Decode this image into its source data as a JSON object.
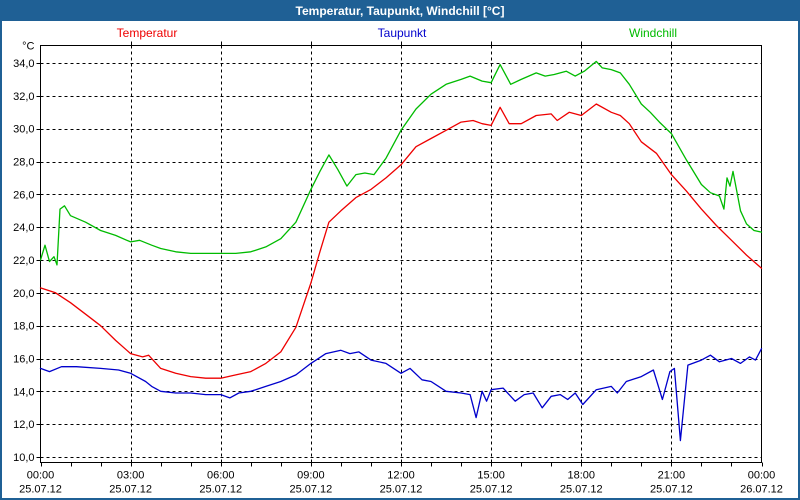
{
  "window": {
    "title": "Temperatur, Taupunkt, Windchill [°C]"
  },
  "colors": {
    "titlebar": "#1f6095",
    "title_text": "#ffffff",
    "axis": "#000000",
    "grid": "#000000",
    "background": "#ffffff"
  },
  "chart_data": {
    "type": "line",
    "title": "Temperatur, Taupunkt, Windchill [°C]",
    "ylabel": "°C",
    "xlabel": "",
    "ylim": [
      9.7,
      35.1
    ],
    "x_unit": "hours",
    "xlim": [
      0,
      24
    ],
    "grid": "dashed",
    "legend_position": "top",
    "y_ticks": [
      {
        "v": 34,
        "label": "34,0"
      },
      {
        "v": 32,
        "label": "32,0"
      },
      {
        "v": 30,
        "label": "30,0"
      },
      {
        "v": 28,
        "label": "28,0"
      },
      {
        "v": 26,
        "label": "26,0"
      },
      {
        "v": 24,
        "label": "24,0"
      },
      {
        "v": 22,
        "label": "22,0"
      },
      {
        "v": 20,
        "label": "20,0"
      },
      {
        "v": 18,
        "label": "18,0"
      },
      {
        "v": 16,
        "label": "16,0"
      },
      {
        "v": 14,
        "label": "14,0"
      },
      {
        "v": 12,
        "label": "12,0"
      },
      {
        "v": 10,
        "label": "10,0"
      }
    ],
    "x_ticks": [
      {
        "h": 0,
        "time": "00:00",
        "date": "25.07.12"
      },
      {
        "h": 3,
        "time": "03:00",
        "date": "25.07.12"
      },
      {
        "h": 6,
        "time": "06:00",
        "date": "25.07.12"
      },
      {
        "h": 9,
        "time": "09:00",
        "date": "25.07.12"
      },
      {
        "h": 12,
        "time": "12:00",
        "date": "25.07.12"
      },
      {
        "h": 15,
        "time": "15:00",
        "date": "25.07.12"
      },
      {
        "h": 18,
        "time": "18:00",
        "date": "25.07.12"
      },
      {
        "h": 21,
        "time": "21:00",
        "date": "25.07.12"
      },
      {
        "h": 24,
        "time": "00:00",
        "date": "26.07.12"
      }
    ],
    "series": [
      {
        "name": "Temperatur",
        "color": "#ee0000",
        "points": [
          [
            0,
            20.3
          ],
          [
            0.5,
            20.0
          ],
          [
            1,
            19.4
          ],
          [
            1.5,
            18.7
          ],
          [
            2,
            18.0
          ],
          [
            2.5,
            17.1
          ],
          [
            3,
            16.3
          ],
          [
            3.4,
            16.1
          ],
          [
            3.6,
            16.2
          ],
          [
            4,
            15.4
          ],
          [
            4.5,
            15.1
          ],
          [
            5,
            14.9
          ],
          [
            5.5,
            14.8
          ],
          [
            6,
            14.8
          ],
          [
            6.5,
            15.0
          ],
          [
            7,
            15.2
          ],
          [
            7.5,
            15.7
          ],
          [
            8,
            16.4
          ],
          [
            8.5,
            17.9
          ],
          [
            9,
            20.6
          ],
          [
            9.3,
            22.5
          ],
          [
            9.6,
            24.3
          ],
          [
            10,
            25.0
          ],
          [
            10.5,
            25.8
          ],
          [
            11,
            26.3
          ],
          [
            11.5,
            27.0
          ],
          [
            12,
            27.8
          ],
          [
            12.5,
            28.9
          ],
          [
            13,
            29.4
          ],
          [
            13.5,
            29.9
          ],
          [
            14,
            30.4
          ],
          [
            14.4,
            30.5
          ],
          [
            14.7,
            30.3
          ],
          [
            15,
            30.2
          ],
          [
            15.3,
            31.3
          ],
          [
            15.6,
            30.3
          ],
          [
            16,
            30.3
          ],
          [
            16.5,
            30.8
          ],
          [
            17,
            30.9
          ],
          [
            17.2,
            30.5
          ],
          [
            17.6,
            31.0
          ],
          [
            18,
            30.8
          ],
          [
            18.5,
            31.5
          ],
          [
            19,
            31.0
          ],
          [
            19.3,
            30.8
          ],
          [
            19.6,
            30.3
          ],
          [
            20,
            29.2
          ],
          [
            20.5,
            28.5
          ],
          [
            21,
            27.2
          ],
          [
            21.5,
            26.2
          ],
          [
            22,
            25.1
          ],
          [
            22.5,
            24.1
          ],
          [
            23,
            23.2
          ],
          [
            23.5,
            22.3
          ],
          [
            24,
            21.5
          ]
        ]
      },
      {
        "name": "Taupunkt",
        "color": "#0000cc",
        "points": [
          [
            0,
            15.4
          ],
          [
            0.3,
            15.2
          ],
          [
            0.7,
            15.5
          ],
          [
            1.2,
            15.5
          ],
          [
            2,
            15.4
          ],
          [
            2.6,
            15.3
          ],
          [
            3,
            15.1
          ],
          [
            3.5,
            14.6
          ],
          [
            3.7,
            14.3
          ],
          [
            4,
            14.0
          ],
          [
            4.5,
            13.9
          ],
          [
            5,
            13.9
          ],
          [
            5.5,
            13.8
          ],
          [
            6,
            13.8
          ],
          [
            6.3,
            13.6
          ],
          [
            6.6,
            13.9
          ],
          [
            7,
            14.0
          ],
          [
            7.5,
            14.3
          ],
          [
            8,
            14.6
          ],
          [
            8.5,
            15.0
          ],
          [
            9,
            15.7
          ],
          [
            9.5,
            16.3
          ],
          [
            10,
            16.5
          ],
          [
            10.3,
            16.3
          ],
          [
            10.6,
            16.4
          ],
          [
            11,
            15.9
          ],
          [
            11.5,
            15.7
          ],
          [
            12,
            15.1
          ],
          [
            12.3,
            15.4
          ],
          [
            12.7,
            14.7
          ],
          [
            13,
            14.6
          ],
          [
            13.5,
            14.0
          ],
          [
            14,
            13.9
          ],
          [
            14.3,
            13.8
          ],
          [
            14.5,
            12.4
          ],
          [
            14.7,
            14.0
          ],
          [
            14.85,
            13.4
          ],
          [
            15,
            14.1
          ],
          [
            15.4,
            14.2
          ],
          [
            15.8,
            13.4
          ],
          [
            16.1,
            13.8
          ],
          [
            16.4,
            13.9
          ],
          [
            16.7,
            13.0
          ],
          [
            17,
            13.7
          ],
          [
            17.3,
            13.8
          ],
          [
            17.55,
            13.5
          ],
          [
            17.8,
            13.9
          ],
          [
            18.05,
            13.2
          ],
          [
            18.5,
            14.1
          ],
          [
            19,
            14.3
          ],
          [
            19.2,
            13.9
          ],
          [
            19.5,
            14.6
          ],
          [
            20,
            14.9
          ],
          [
            20.4,
            15.3
          ],
          [
            20.7,
            13.5
          ],
          [
            20.95,
            15.2
          ],
          [
            21.1,
            15.4
          ],
          [
            21.3,
            11.0
          ],
          [
            21.55,
            15.6
          ],
          [
            22,
            15.9
          ],
          [
            22.3,
            16.2
          ],
          [
            22.6,
            15.8
          ],
          [
            23,
            16.0
          ],
          [
            23.3,
            15.7
          ],
          [
            23.6,
            16.1
          ],
          [
            23.8,
            15.9
          ],
          [
            24,
            16.6
          ]
        ]
      },
      {
        "name": "Windchill",
        "color": "#00bb00",
        "points": [
          [
            0,
            22.0
          ],
          [
            0.15,
            22.9
          ],
          [
            0.3,
            21.9
          ],
          [
            0.45,
            22.2
          ],
          [
            0.55,
            21.7
          ],
          [
            0.65,
            25.1
          ],
          [
            0.8,
            25.3
          ],
          [
            1,
            24.7
          ],
          [
            1.5,
            24.3
          ],
          [
            2,
            23.8
          ],
          [
            2.5,
            23.5
          ],
          [
            3,
            23.1
          ],
          [
            3.3,
            23.2
          ],
          [
            3.7,
            22.9
          ],
          [
            4,
            22.7
          ],
          [
            4.5,
            22.5
          ],
          [
            5,
            22.4
          ],
          [
            6,
            22.4
          ],
          [
            6.5,
            22.4
          ],
          [
            7,
            22.5
          ],
          [
            7.5,
            22.8
          ],
          [
            8,
            23.3
          ],
          [
            8.5,
            24.3
          ],
          [
            9,
            26.3
          ],
          [
            9.3,
            27.4
          ],
          [
            9.6,
            28.4
          ],
          [
            9.9,
            27.5
          ],
          [
            10.2,
            26.5
          ],
          [
            10.5,
            27.2
          ],
          [
            10.8,
            27.3
          ],
          [
            11.1,
            27.2
          ],
          [
            11.5,
            28.2
          ],
          [
            12,
            29.9
          ],
          [
            12.5,
            31.2
          ],
          [
            13,
            32.1
          ],
          [
            13.5,
            32.7
          ],
          [
            14,
            33.0
          ],
          [
            14.3,
            33.2
          ],
          [
            14.7,
            32.9
          ],
          [
            15,
            32.8
          ],
          [
            15.3,
            33.9
          ],
          [
            15.65,
            32.7
          ],
          [
            16,
            33.0
          ],
          [
            16.5,
            33.4
          ],
          [
            16.8,
            33.2
          ],
          [
            17.1,
            33.3
          ],
          [
            17.5,
            33.5
          ],
          [
            17.8,
            33.2
          ],
          [
            18.1,
            33.5
          ],
          [
            18.5,
            34.1
          ],
          [
            18.7,
            33.7
          ],
          [
            19,
            33.6
          ],
          [
            19.3,
            33.4
          ],
          [
            19.6,
            32.7
          ],
          [
            20,
            31.5
          ],
          [
            20.3,
            31.0
          ],
          [
            20.6,
            30.4
          ],
          [
            21,
            29.7
          ],
          [
            21.5,
            28.1
          ],
          [
            22,
            26.6
          ],
          [
            22.3,
            26.1
          ],
          [
            22.6,
            25.9
          ],
          [
            22.75,
            25.1
          ],
          [
            22.85,
            27.0
          ],
          [
            22.95,
            26.5
          ],
          [
            23.05,
            27.4
          ],
          [
            23.3,
            25.0
          ],
          [
            23.5,
            24.2
          ],
          [
            23.75,
            23.8
          ],
          [
            24,
            23.7
          ]
        ]
      }
    ]
  }
}
